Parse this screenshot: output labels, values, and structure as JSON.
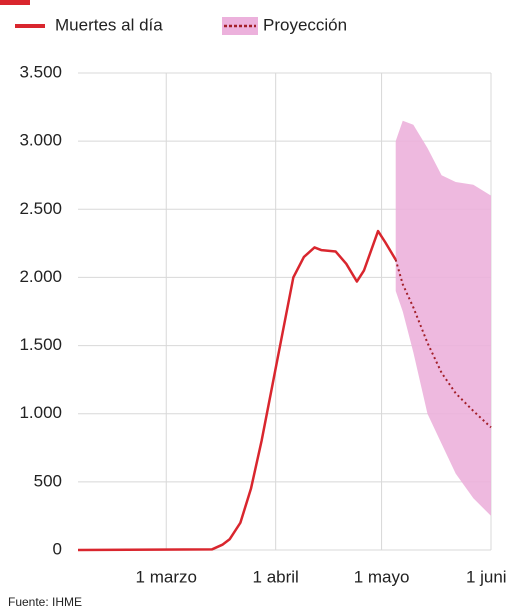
{
  "chart_data": {
    "type": "line",
    "source": "Fuente: IHME",
    "xlim": [
      "02-05",
      "06-01"
    ],
    "xticks": [
      {
        "value": "03-01",
        "label": "1 marzo"
      },
      {
        "value": "04-01",
        "label": "1 abril"
      },
      {
        "value": "05-01",
        "label": "1 mayo"
      },
      {
        "value": "06-01",
        "label": "1 junio"
      }
    ],
    "ylim": [
      0,
      3500
    ],
    "yticks": [
      0,
      500,
      {
        "value": 1000,
        "label": "1.000"
      },
      {
        "value": 1500,
        "label": "1.500"
      },
      {
        "value": 2000,
        "label": "2.000"
      },
      {
        "value": 2500,
        "label": "2.500"
      },
      {
        "value": 3000,
        "label": "3.000"
      },
      {
        "value": 3500,
        "label": "3.500"
      }
    ],
    "grid": true,
    "series": [
      {
        "name": "Muertes al día",
        "color": "#d9262e",
        "x": [
          "02-05",
          "03-14",
          "03-17",
          "03-19",
          "03-22",
          "03-25",
          "03-28",
          "03-31",
          "04-03",
          "04-06",
          "04-09",
          "04-12",
          "04-14",
          "04-18",
          "04-21",
          "04-24",
          "04-26",
          "04-30",
          "05-02",
          "05-05"
        ],
        "values": [
          0,
          5,
          40,
          80,
          200,
          450,
          800,
          1200,
          1600,
          2000,
          2150,
          2220,
          2200,
          2190,
          2100,
          1970,
          2050,
          2340,
          2260,
          2130
        ]
      }
    ],
    "projection": {
      "name": "Proyección",
      "color": "#a3202a",
      "band_color": "#ecb1dc",
      "x": [
        "05-05",
        "05-07",
        "05-10",
        "05-14",
        "05-18",
        "05-22",
        "05-27",
        "06-01"
      ],
      "values": [
        2130,
        1950,
        1780,
        1520,
        1300,
        1150,
        1020,
        900
      ],
      "upper": [
        3000,
        3150,
        3120,
        2950,
        2750,
        2700,
        2680,
        2600
      ],
      "lower": [
        1900,
        1750,
        1450,
        1000,
        780,
        560,
        380,
        250
      ]
    }
  }
}
